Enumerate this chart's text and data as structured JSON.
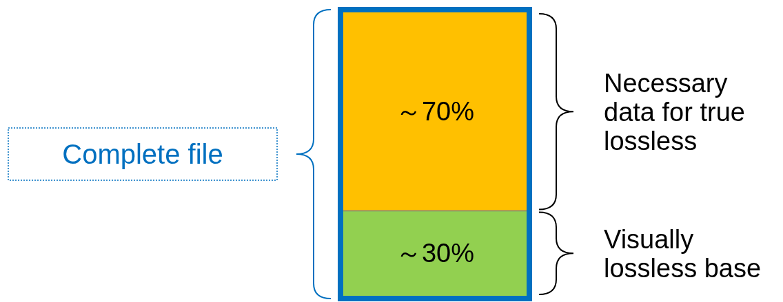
{
  "chart_data": {
    "type": "bar",
    "stacked": true,
    "categories": [
      null
    ],
    "series": [
      {
        "name": "Visually lossless base",
        "color": "#92d050",
        "values": [
          30
        ],
        "value_labels": [
          "～30%"
        ]
      },
      {
        "name": "Necessary data for true lossless",
        "color": "#ffc000",
        "values": [
          70
        ],
        "value_labels": [
          "～70%"
        ]
      }
    ],
    "annotations": [
      "Complete file"
    ]
  }
}
